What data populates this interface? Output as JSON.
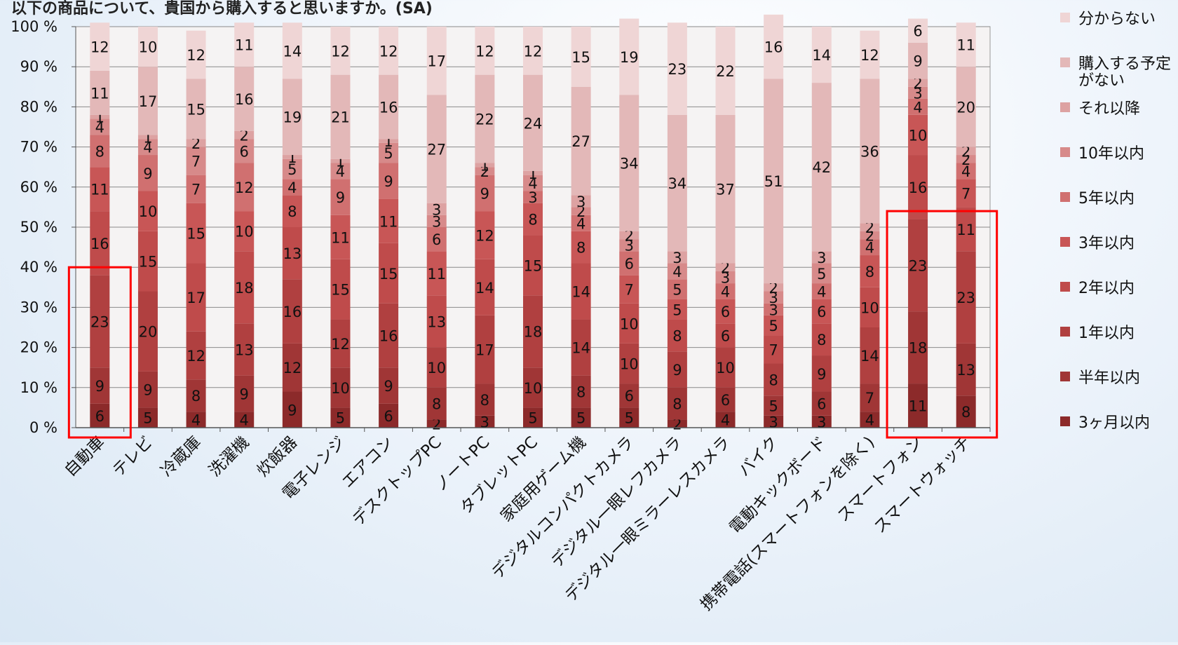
{
  "chart_title": "以下の商品について、貴国から購入すると思いますか。(SA)",
  "chart_data": {
    "type": "bar",
    "stacked": true,
    "ylim": [
      0,
      100
    ],
    "y_ticks": [
      "0 %",
      "10 %",
      "20 %",
      "30 %",
      "40 %",
      "50 %",
      "60 %",
      "70 %",
      "80 %",
      "90 %",
      "100 %"
    ],
    "grid": true,
    "legend_position": "right",
    "categories": [
      "自動車",
      "テレビ",
      "冷蔵庫",
      "洗濯機",
      "炊飯器",
      "電子レンジ",
      "エアコン",
      "デスクトップPC",
      "ノートPC",
      "タブレットPC",
      "家庭用ゲーム機",
      "デジタルコンパクトカメラ",
      "デジタル一眼レフカメラ",
      "デジタル一眼ミラーレスカメラ",
      "バイク",
      "電動キックボード",
      "携帯電話(スマートフォンを除く)",
      "スマートフォン",
      "スマートウォッチ"
    ],
    "series": [
      {
        "name": "3ヶ月以内",
        "color": "#8c2a2a",
        "values": [
          6,
          5,
          4,
          4,
          9,
          5,
          6,
          2,
          3,
          5,
          5,
          5,
          2,
          4,
          3,
          3,
          4,
          11,
          8
        ]
      },
      {
        "name": "半年以内",
        "color": "#a03636",
        "values": [
          9,
          9,
          8,
          9,
          12,
          10,
          9,
          8,
          8,
          10,
          8,
          6,
          8,
          6,
          5,
          6,
          7,
          18,
          13
        ]
      },
      {
        "name": "1年以内",
        "color": "#b04040",
        "values": [
          23,
          20,
          12,
          13,
          16,
          12,
          16,
          10,
          17,
          18,
          14,
          10,
          9,
          10,
          8,
          9,
          14,
          23,
          23
        ]
      },
      {
        "name": "2年以内",
        "color": "#bf4b4b",
        "values": [
          16,
          15,
          17,
          18,
          13,
          15,
          15,
          13,
          14,
          15,
          14,
          10,
          8,
          6,
          7,
          8,
          10,
          16,
          11
        ]
      },
      {
        "name": "3年以内",
        "color": "#c85656",
        "values": [
          11,
          10,
          15,
          10,
          8,
          11,
          11,
          11,
          12,
          8,
          8,
          7,
          5,
          6,
          5,
          6,
          8,
          10,
          7
        ]
      },
      {
        "name": "5年以内",
        "color": "#d07070",
        "values": [
          8,
          9,
          7,
          12,
          4,
          9,
          9,
          6,
          9,
          3,
          4,
          6,
          5,
          4,
          3,
          4,
          4,
          4,
          4
        ]
      },
      {
        "name": "10年以内",
        "color": "#d78a8a",
        "values": [
          4,
          4,
          7,
          6,
          5,
          4,
          5,
          3,
          2,
          4,
          2,
          3,
          4,
          3,
          3,
          5,
          2,
          3,
          2
        ]
      },
      {
        "name": "それ以降",
        "color": "#dda2a2",
        "values": [
          1,
          1,
          2,
          2,
          1,
          1,
          1,
          3,
          1,
          1,
          3,
          2,
          3,
          2,
          2,
          3,
          2,
          2,
          2
        ]
      },
      {
        "name": "購入する予定がない",
        "color": "#e3b8b8",
        "values": [
          11,
          17,
          15,
          16,
          19,
          21,
          16,
          27,
          22,
          24,
          27,
          34,
          34,
          37,
          51,
          42,
          36,
          9,
          20
        ]
      },
      {
        "name": "分からない",
        "color": "#efd5d5",
        "values": [
          12,
          10,
          12,
          11,
          14,
          12,
          12,
          17,
          12,
          12,
          15,
          19,
          23,
          22,
          16,
          14,
          12,
          6,
          11
        ]
      }
    ],
    "highlight_boxes": [
      {
        "from_category": "自動車",
        "to_category": "自動車",
        "y_top": 40,
        "color": "#ff0000"
      },
      {
        "from_category": "スマートフォン",
        "to_category": "スマートウォッチ",
        "y_top": 54,
        "color": "#ff0000"
      }
    ]
  }
}
